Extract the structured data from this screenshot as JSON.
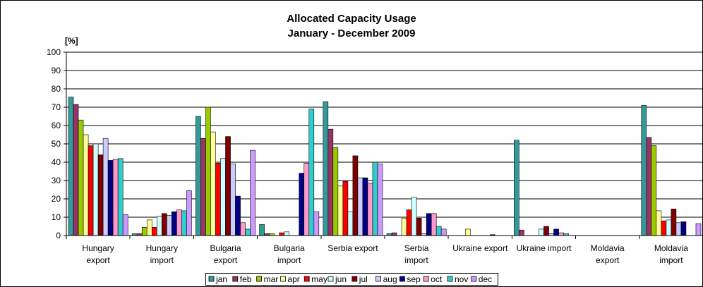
{
  "chart_data": {
    "type": "bar",
    "title": "Allocated Capacity Usage",
    "subtitle": "January - December 2009",
    "ylabel": "[%]",
    "xlabel": "",
    "ylim": [
      0,
      100
    ],
    "yticks": [
      0,
      10,
      20,
      30,
      40,
      50,
      60,
      70,
      80,
      90,
      100
    ],
    "grid": true,
    "legend_position": "bottom",
    "categories": [
      [
        "Hungary",
        "export"
      ],
      [
        "Hungary",
        "import"
      ],
      [
        "Bulgaria",
        "export"
      ],
      [
        "Bulgaria",
        "import"
      ],
      [
        "Serbia    export"
      ],
      [
        "Serbia",
        "import"
      ],
      [
        "Ukraine export"
      ],
      [
        "Ukraine import"
      ],
      [
        "Moldavia",
        "export"
      ],
      [
        "Moldavia",
        "import"
      ]
    ],
    "series": [
      {
        "name": "jan",
        "color": "#339999",
        "values": [
          75.5,
          1,
          65,
          6,
          73,
          1,
          0,
          52,
          0,
          71
        ]
      },
      {
        "name": "feb",
        "color": "#993366",
        "values": [
          71.5,
          1,
          53,
          1,
          58,
          1.5,
          0,
          3,
          0,
          53.5
        ]
      },
      {
        "name": "mar",
        "color": "#99CC00",
        "values": [
          63,
          4.5,
          70,
          1,
          48,
          0,
          0,
          0,
          0,
          49
        ]
      },
      {
        "name": "apr",
        "color": "#FFFF99",
        "values": [
          55,
          8.5,
          56.5,
          0,
          27,
          9.5,
          3.5,
          0,
          0,
          13.5
        ]
      },
      {
        "name": "may",
        "color": "#FF0000",
        "values": [
          49,
          4.5,
          39.5,
          1.5,
          29.5,
          14,
          0,
          0,
          0,
          8
        ]
      },
      {
        "name": "jun",
        "color": "#CCFFFF",
        "values": [
          50,
          10.5,
          42,
          2,
          13,
          21,
          0,
          3.5,
          0,
          8.5
        ]
      },
      {
        "name": "jul",
        "color": "#800000",
        "values": [
          44,
          12,
          54,
          0,
          43.5,
          9.5,
          0,
          5,
          0,
          14.5
        ]
      },
      {
        "name": "aug",
        "color": "#CCCCFF",
        "values": [
          53,
          11,
          39,
          0,
          31.5,
          1,
          0,
          1,
          0,
          7
        ]
      },
      {
        "name": "sep",
        "color": "#000080",
        "values": [
          41,
          13,
          21.5,
          34,
          31.5,
          12,
          0.5,
          3.5,
          0,
          7.5
        ]
      },
      {
        "name": "oct",
        "color": "#FF99CC",
        "values": [
          41.5,
          14,
          7,
          39.5,
          28.5,
          12,
          0,
          1.5,
          0,
          0
        ]
      },
      {
        "name": "nov",
        "color": "#33CCCC",
        "values": [
          42,
          13.5,
          3.5,
          69,
          40,
          5,
          0,
          1,
          0,
          0
        ]
      },
      {
        "name": "dec",
        "color": "#CC99FF",
        "values": [
          11.5,
          24.5,
          46.5,
          13,
          39,
          3.5,
          0,
          0,
          0,
          6.5
        ]
      }
    ]
  }
}
